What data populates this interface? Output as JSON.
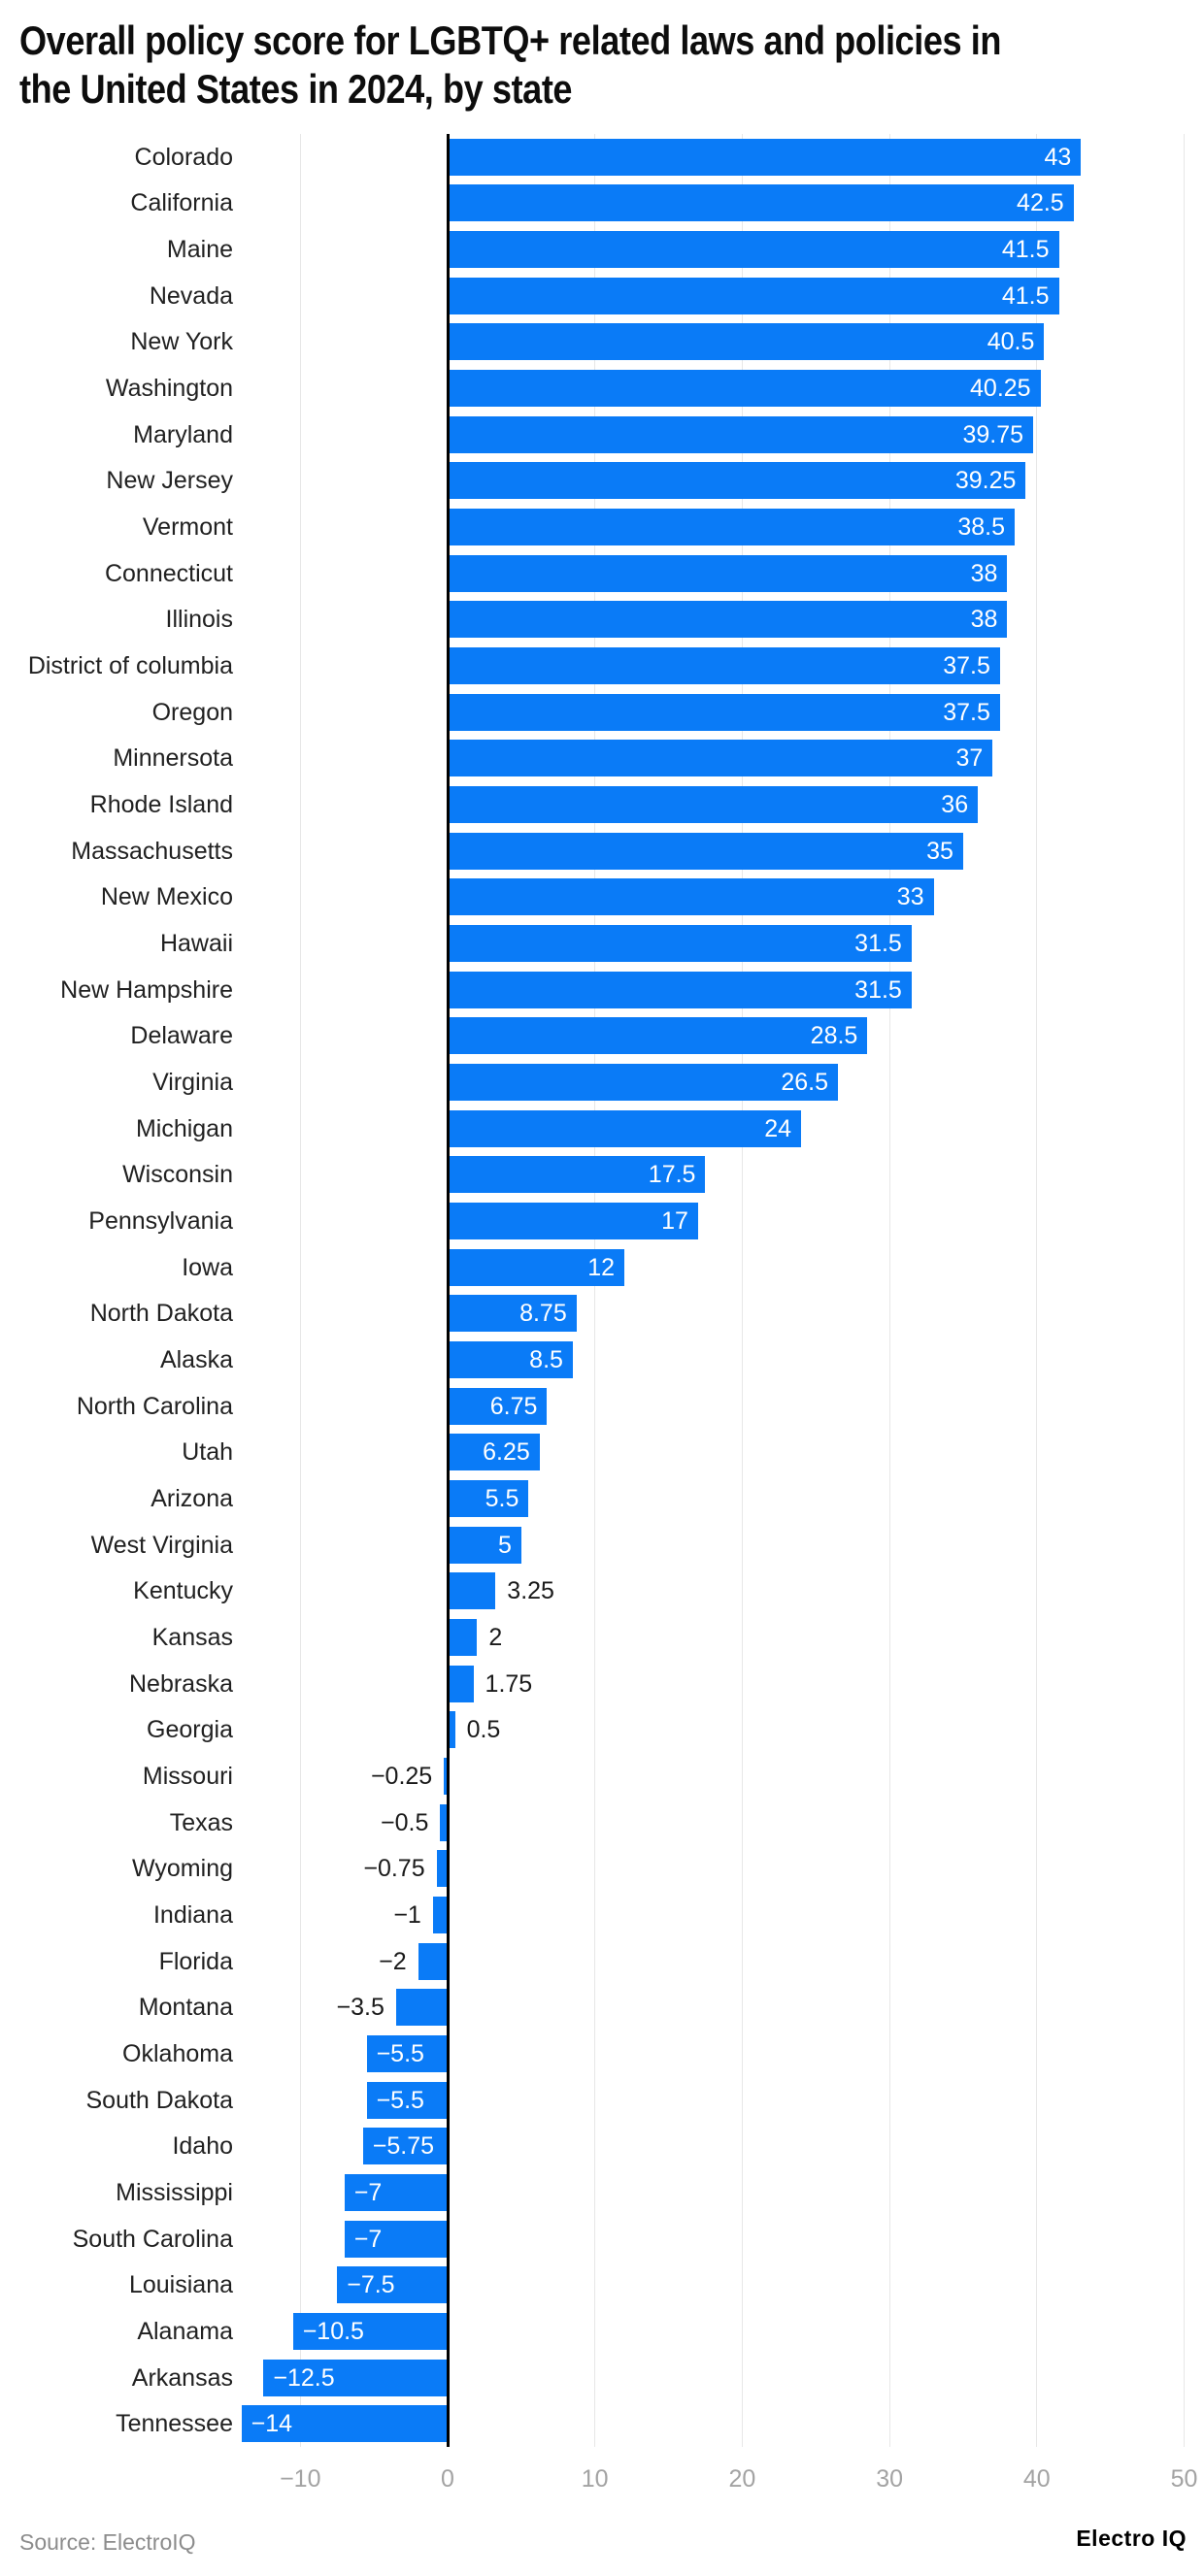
{
  "title": "Overall policy score for LGBTQ+ related laws and policies in the United States in 2024, by state",
  "title_lines": [
    "Overall policy score for LGBTQ+ related laws and policies in",
    "the United States in 2024, by state"
  ],
  "footer": {
    "source": "Source: ElectroIQ",
    "brand": "Electro IQ"
  },
  "colors": {
    "bar": "#0a7bf7",
    "zero_axis": "#000000",
    "gridline": "#e7e7e7",
    "tick_label": "#a3a3a3",
    "state_label": "#212121",
    "value_label_inside": "#ffffff",
    "value_label_outside": "#1a1a1a",
    "title": "#0d0d0d",
    "source_text": "#8c8c8c",
    "background": "#ffffff"
  },
  "axis": {
    "ticks": [
      -10,
      0,
      10,
      20,
      30,
      40,
      50
    ],
    "tick_labels": [
      "−10",
      "0",
      "10",
      "20",
      "30",
      "40",
      "50"
    ],
    "min": -14,
    "max": 50,
    "grid": true
  },
  "chart_data": {
    "type": "bar",
    "orientation": "horizontal",
    "title": "Overall policy score for LGBTQ+ related laws and policies in the United States in 2024, by state",
    "xlabel": "",
    "ylabel": "",
    "xlim": [
      -14,
      50
    ],
    "grid": true,
    "legend": false,
    "categories": [
      "Colorado",
      "California",
      "Maine",
      "Nevada",
      "New York",
      "Washington",
      "Maryland",
      "New Jersey",
      "Vermont",
      "Connecticut",
      "Illinois",
      "District of columbia",
      "Oregon",
      "Minnersota",
      "Rhode Island",
      "Massachusetts",
      "New Mexico",
      "Hawaii",
      "New Hampshire",
      "Delaware",
      "Virginia",
      "Michigan",
      "Wisconsin",
      "Pennsylvania",
      "Iowa",
      "North Dakota",
      "Alaska",
      "North Carolina",
      "Utah",
      "Arizona",
      "West Virginia",
      "Kentucky",
      "Kansas",
      "Nebraska",
      "Georgia",
      "Missouri",
      "Texas",
      "Wyoming",
      "Indiana",
      "Florida",
      "Montana",
      "Oklahoma",
      "South Dakota",
      "Idaho",
      "Mississippi",
      "South Carolina",
      "Louisiana",
      "Alanama",
      "Arkansas",
      "Tennessee"
    ],
    "values": [
      43,
      42.5,
      41.5,
      41.5,
      40.5,
      40.25,
      39.75,
      39.25,
      38.5,
      38,
      38,
      37.5,
      37.5,
      37,
      36,
      35,
      33,
      31.5,
      31.5,
      28.5,
      26.5,
      24,
      17.5,
      17,
      12,
      8.75,
      8.5,
      6.75,
      6.25,
      5.5,
      5,
      3.25,
      2,
      1.75,
      0.5,
      -0.25,
      -0.5,
      -0.75,
      -1,
      -2,
      -3.5,
      -5.5,
      -5.5,
      -5.75,
      -7,
      -7,
      -7.5,
      -10.5,
      -12.5,
      -14
    ],
    "value_labels": [
      "43",
      "42.5",
      "41.5",
      "41.5",
      "40.5",
      "40.25",
      "39.75",
      "39.25",
      "38.5",
      "38",
      "38",
      "37.5",
      "37.5",
      "37",
      "36",
      "35",
      "33",
      "31.5",
      "31.5",
      "28.5",
      "26.5",
      "24",
      "17.5",
      "17",
      "12",
      "8.75",
      "8.5",
      "6.75",
      "6.25",
      "5.5",
      "5",
      "3.25",
      "2",
      "1.75",
      "0.5",
      "−0.25",
      "−0.5",
      "−0.75",
      "−1",
      "−2",
      "−3.5",
      "−5.5",
      "−5.5",
      "−5.75",
      "−7",
      "−7",
      "−7.5",
      "−10.5",
      "−12.5",
      "−14"
    ]
  }
}
